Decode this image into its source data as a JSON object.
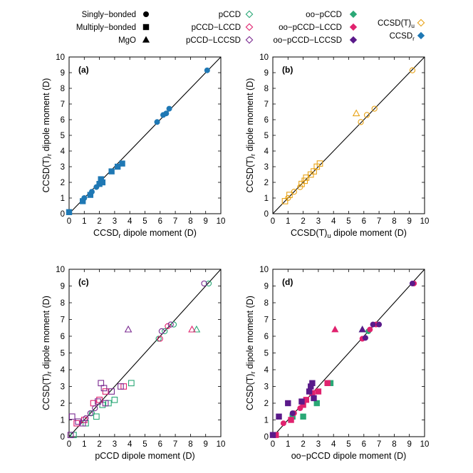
{
  "legend": {
    "shapes": [
      {
        "label": "Singly−bonded",
        "shape": "circle"
      },
      {
        "label": "Multiply−bonded",
        "shape": "square"
      },
      {
        "label": "MgO",
        "shape": "triangle"
      }
    ],
    "methods": [
      {
        "label": "pCCD",
        "color": "#2aa876",
        "filled": false
      },
      {
        "label": "pCCD−LCCD",
        "color": "#e0226e",
        "filled": false
      },
      {
        "label": "pCCD−LCCSD",
        "color": "#7a2a90",
        "filled": false
      },
      {
        "label": "oo−pCCD",
        "color": "#2aa876",
        "filled": true
      },
      {
        "label": "oo−pCCD−LCCD",
        "color": "#e0226e",
        "filled": true
      },
      {
        "label": "oo−pCCD−LCCSD",
        "color": "#5a1a8a",
        "filled": true
      },
      {
        "label": "CCSD(T)",
        "sub": "u",
        "color": "#e8a317",
        "filled": false
      },
      {
        "label": "CCSD",
        "sub": "r",
        "color": "#1f78b4",
        "filled": true
      }
    ]
  },
  "chart_data": [
    {
      "type": "scatter",
      "panel_label": "(a)",
      "xlabel": {
        "main": "CCSD",
        "sub": "r",
        "rest": " dipole moment (D)"
      },
      "ylabel": {
        "main": "CCSD(T)",
        "sub": "r",
        "rest": " dipole moment (D)"
      },
      "xlim": [
        0,
        10
      ],
      "ylim": [
        0,
        10
      ],
      "ticks": [
        0,
        1,
        2,
        3,
        4,
        5,
        6,
        7,
        8,
        9,
        10
      ],
      "diagonal": true,
      "series": [
        {
          "method": "CCSD_r",
          "color": "#1f78b4",
          "filled": true,
          "points": [
            {
              "x": 0.0,
              "y": 0.1,
              "shape": "square"
            },
            {
              "x": 0.9,
              "y": 0.8,
              "shape": "square"
            },
            {
              "x": 1.0,
              "y": 1.0,
              "shape": "circle"
            },
            {
              "x": 1.4,
              "y": 1.2,
              "shape": "square"
            },
            {
              "x": 1.5,
              "y": 1.4,
              "shape": "circle"
            },
            {
              "x": 1.8,
              "y": 1.7,
              "shape": "circle"
            },
            {
              "x": 2.0,
              "y": 1.9,
              "shape": "square"
            },
            {
              "x": 2.1,
              "y": 2.2,
              "shape": "square"
            },
            {
              "x": 2.2,
              "y": 2.0,
              "shape": "square"
            },
            {
              "x": 2.8,
              "y": 2.7,
              "shape": "square"
            },
            {
              "x": 3.2,
              "y": 3.0,
              "shape": "square"
            },
            {
              "x": 3.5,
              "y": 3.2,
              "shape": "square"
            },
            {
              "x": 5.8,
              "y": 5.85,
              "shape": "circle"
            },
            {
              "x": 6.2,
              "y": 6.3,
              "shape": "circle"
            },
            {
              "x": 6.4,
              "y": 6.4,
              "shape": "circle"
            },
            {
              "x": 6.6,
              "y": 6.7,
              "shape": "circle"
            },
            {
              "x": 9.1,
              "y": 9.15,
              "shape": "circle"
            }
          ]
        }
      ]
    },
    {
      "type": "scatter",
      "panel_label": "(b)",
      "xlabel": {
        "main": "CCSD(T)",
        "sub": "u",
        "rest": " dipole moment (D)"
      },
      "ylabel": {
        "main": "CCSD(T)",
        "sub": "r",
        "rest": " dipole moment (D)"
      },
      "xlim": [
        0,
        10
      ],
      "ylim": [
        0,
        10
      ],
      "ticks": [
        0,
        1,
        2,
        3,
        4,
        5,
        6,
        7,
        8,
        9,
        10
      ],
      "diagonal": true,
      "series": [
        {
          "method": "CCSD(T)_u",
          "color": "#e8a317",
          "filled": false,
          "points": [
            {
              "x": 0.8,
              "y": 0.8,
              "shape": "square"
            },
            {
              "x": 1.0,
              "y": 1.0,
              "shape": "circle"
            },
            {
              "x": 1.1,
              "y": 1.2,
              "shape": "square"
            },
            {
              "x": 1.4,
              "y": 1.4,
              "shape": "circle"
            },
            {
              "x": 1.8,
              "y": 1.7,
              "shape": "circle"
            },
            {
              "x": 1.9,
              "y": 1.9,
              "shape": "square"
            },
            {
              "x": 2.1,
              "y": 2.1,
              "shape": "square"
            },
            {
              "x": 2.2,
              "y": 2.3,
              "shape": "square"
            },
            {
              "x": 2.5,
              "y": 2.5,
              "shape": "square"
            },
            {
              "x": 2.7,
              "y": 2.7,
              "shape": "square"
            },
            {
              "x": 2.9,
              "y": 3.0,
              "shape": "square"
            },
            {
              "x": 3.1,
              "y": 3.2,
              "shape": "square"
            },
            {
              "x": 5.5,
              "y": 6.4,
              "shape": "triangle"
            },
            {
              "x": 5.8,
              "y": 5.85,
              "shape": "circle"
            },
            {
              "x": 6.2,
              "y": 6.3,
              "shape": "circle"
            },
            {
              "x": 6.7,
              "y": 6.7,
              "shape": "circle"
            },
            {
              "x": 9.2,
              "y": 9.15,
              "shape": "circle"
            }
          ]
        }
      ]
    },
    {
      "type": "scatter",
      "panel_label": "(c)",
      "xlabel": {
        "main": "pCCD",
        "sub": "",
        "rest": " dipole moment (D)"
      },
      "ylabel": {
        "main": "CCSD(T)",
        "sub": "r",
        "rest": " dipole moment (D)"
      },
      "xlim": [
        0,
        10
      ],
      "ylim": [
        0,
        10
      ],
      "ticks": [
        0,
        1,
        2,
        3,
        4,
        5,
        6,
        7,
        8,
        9,
        10
      ],
      "diagonal": true,
      "series": [
        {
          "method": "pCCD",
          "color": "#2aa876",
          "filled": false,
          "points": [
            {
              "x": 0.3,
              "y": 0.1,
              "shape": "square"
            },
            {
              "x": 1.1,
              "y": 0.8,
              "shape": "square"
            },
            {
              "x": 1.5,
              "y": 1.4,
              "shape": "circle"
            },
            {
              "x": 1.8,
              "y": 1.2,
              "shape": "square"
            },
            {
              "x": 2.2,
              "y": 1.9,
              "shape": "square"
            },
            {
              "x": 2.6,
              "y": 2.0,
              "shape": "square"
            },
            {
              "x": 3.0,
              "y": 2.2,
              "shape": "square"
            },
            {
              "x": 4.1,
              "y": 3.2,
              "shape": "square"
            },
            {
              "x": 5.9,
              "y": 5.85,
              "shape": "circle"
            },
            {
              "x": 6.3,
              "y": 6.3,
              "shape": "circle"
            },
            {
              "x": 6.9,
              "y": 6.7,
              "shape": "circle"
            },
            {
              "x": 8.4,
              "y": 6.4,
              "shape": "triangle"
            },
            {
              "x": 9.2,
              "y": 9.15,
              "shape": "circle"
            }
          ]
        },
        {
          "method": "pCCD-LCCD",
          "color": "#e0226e",
          "filled": false,
          "points": [
            {
              "x": 0.5,
              "y": 0.8,
              "shape": "square"
            },
            {
              "x": 1.0,
              "y": 1.0,
              "shape": "square"
            },
            {
              "x": 1.6,
              "y": 2.0,
              "shape": "square"
            },
            {
              "x": 2.0,
              "y": 2.2,
              "shape": "square"
            },
            {
              "x": 2.4,
              "y": 2.7,
              "shape": "square"
            },
            {
              "x": 3.6,
              "y": 3.0,
              "shape": "square"
            },
            {
              "x": 6.0,
              "y": 5.85,
              "shape": "circle"
            },
            {
              "x": 6.5,
              "y": 6.6,
              "shape": "circle"
            },
            {
              "x": 8.1,
              "y": 6.4,
              "shape": "triangle"
            }
          ]
        },
        {
          "method": "pCCD-LCCSD",
          "color": "#7a2a90",
          "filled": false,
          "points": [
            {
              "x": 0.1,
              "y": 0.1,
              "shape": "square"
            },
            {
              "x": 0.2,
              "y": 1.2,
              "shape": "square"
            },
            {
              "x": 0.6,
              "y": 0.9,
              "shape": "square"
            },
            {
              "x": 0.9,
              "y": 0.8,
              "shape": "square"
            },
            {
              "x": 1.1,
              "y": 1.1,
              "shape": "circle"
            },
            {
              "x": 1.4,
              "y": 1.4,
              "shape": "circle"
            },
            {
              "x": 1.7,
              "y": 1.7,
              "shape": "circle"
            },
            {
              "x": 1.9,
              "y": 2.1,
              "shape": "square"
            },
            {
              "x": 2.1,
              "y": 3.2,
              "shape": "square"
            },
            {
              "x": 2.3,
              "y": 2.9,
              "shape": "square"
            },
            {
              "x": 2.4,
              "y": 2.0,
              "shape": "square"
            },
            {
              "x": 2.8,
              "y": 2.7,
              "shape": "square"
            },
            {
              "x": 3.4,
              "y": 3.0,
              "shape": "square"
            },
            {
              "x": 3.9,
              "y": 6.4,
              "shape": "triangle"
            },
            {
              "x": 6.1,
              "y": 6.3,
              "shape": "circle"
            },
            {
              "x": 6.7,
              "y": 6.7,
              "shape": "circle"
            },
            {
              "x": 8.9,
              "y": 9.15,
              "shape": "circle"
            }
          ]
        }
      ]
    },
    {
      "type": "scatter",
      "panel_label": "(d)",
      "xlabel": {
        "main": "oo−pCCD",
        "sub": "",
        "rest": " dipole moment (D)"
      },
      "ylabel": {
        "main": "CCSD(T)",
        "sub": "r",
        "rest": " dipole moment (D)"
      },
      "xlim": [
        0,
        10
      ],
      "ylim": [
        0,
        10
      ],
      "ticks": [
        0,
        1,
        2,
        3,
        4,
        5,
        6,
        7,
        8,
        9,
        10
      ],
      "diagonal": true,
      "series": [
        {
          "method": "oo-pCCD",
          "color": "#2aa876",
          "filled": true,
          "points": [
            {
              "x": 1.3,
              "y": 1.2,
              "shape": "square"
            },
            {
              "x": 2.0,
              "y": 1.2,
              "shape": "square"
            },
            {
              "x": 2.9,
              "y": 2.0,
              "shape": "square"
            },
            {
              "x": 3.8,
              "y": 3.2,
              "shape": "square"
            },
            {
              "x": 5.9,
              "y": 6.4,
              "shape": "triangle"
            },
            {
              "x": 6.3,
              "y": 6.3,
              "shape": "circle"
            }
          ]
        },
        {
          "method": "oo-pCCD-LCCD",
          "color": "#e0226e",
          "filled": true,
          "points": [
            {
              "x": 0.2,
              "y": 0.1,
              "shape": "square"
            },
            {
              "x": 0.7,
              "y": 0.8,
              "shape": "circle"
            },
            {
              "x": 1.2,
              "y": 1.0,
              "shape": "square"
            },
            {
              "x": 1.4,
              "y": 1.4,
              "shape": "circle"
            },
            {
              "x": 1.8,
              "y": 1.7,
              "shape": "circle"
            },
            {
              "x": 2.0,
              "y": 1.9,
              "shape": "square"
            },
            {
              "x": 2.2,
              "y": 2.2,
              "shape": "square"
            },
            {
              "x": 2.6,
              "y": 2.6,
              "shape": "square"
            },
            {
              "x": 3.0,
              "y": 2.7,
              "shape": "square"
            },
            {
              "x": 3.6,
              "y": 3.2,
              "shape": "square"
            },
            {
              "x": 4.1,
              "y": 6.4,
              "shape": "triangle"
            },
            {
              "x": 5.9,
              "y": 5.85,
              "shape": "circle"
            },
            {
              "x": 6.4,
              "y": 6.4,
              "shape": "circle"
            },
            {
              "x": 6.8,
              "y": 6.7,
              "shape": "circle"
            },
            {
              "x": 9.3,
              "y": 9.15,
              "shape": "circle"
            }
          ]
        },
        {
          "method": "oo-pCCD-LCCSD",
          "color": "#5a1a8a",
          "filled": true,
          "points": [
            {
              "x": 0.0,
              "y": 0.1,
              "shape": "square"
            },
            {
              "x": 0.4,
              "y": 1.2,
              "shape": "square"
            },
            {
              "x": 1.0,
              "y": 2.0,
              "shape": "square"
            },
            {
              "x": 1.3,
              "y": 1.4,
              "shape": "circle"
            },
            {
              "x": 1.9,
              "y": 2.1,
              "shape": "square"
            },
            {
              "x": 2.4,
              "y": 2.7,
              "shape": "square"
            },
            {
              "x": 2.5,
              "y": 3.0,
              "shape": "square"
            },
            {
              "x": 2.6,
              "y": 3.2,
              "shape": "square"
            },
            {
              "x": 2.7,
              "y": 2.3,
              "shape": "square"
            },
            {
              "x": 5.9,
              "y": 6.4,
              "shape": "triangle"
            },
            {
              "x": 6.1,
              "y": 5.9,
              "shape": "circle"
            },
            {
              "x": 6.6,
              "y": 6.7,
              "shape": "circle"
            },
            {
              "x": 7.0,
              "y": 6.7,
              "shape": "circle"
            },
            {
              "x": 9.2,
              "y": 9.15,
              "shape": "circle"
            }
          ]
        }
      ]
    }
  ]
}
